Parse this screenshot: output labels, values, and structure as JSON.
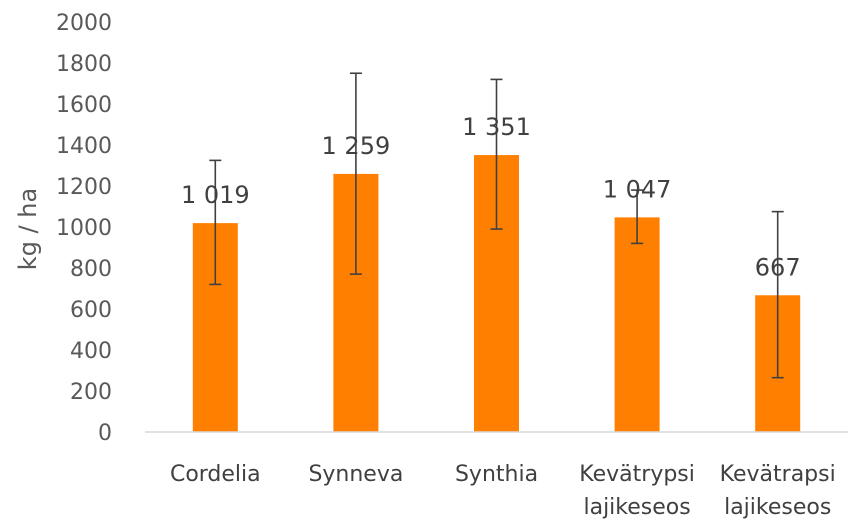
{
  "chart_data": {
    "type": "bar",
    "categories": [
      [
        "Cordelia"
      ],
      [
        "Synneva"
      ],
      [
        "Synthia"
      ],
      [
        "Kevätrypsi",
        "lajikeseos"
      ],
      [
        "Kevätrapsi",
        "lajikeseos"
      ]
    ],
    "values": [
      1019,
      1259,
      1351,
      1047,
      667
    ],
    "data_labels": [
      "1 019",
      "1 259",
      "1 351",
      "1 047",
      "667"
    ],
    "error_bars": [
      {
        "low": 720,
        "high": 1325
      },
      {
        "low": 770,
        "high": 1750
      },
      {
        "low": 990,
        "high": 1720
      },
      {
        "low": 920,
        "high": 1180
      },
      {
        "low": 265,
        "high": 1075
      }
    ],
    "ylabel": "kg  / ha",
    "ylim": [
      0,
      2000
    ],
    "yticks": [
      0,
      200,
      400,
      600,
      800,
      1000,
      1200,
      1400,
      1600,
      1800,
      2000
    ],
    "grid": false,
    "bar_color": "#FF8000",
    "error_bar_color": "#404040",
    "axis_color": "#D9D9D9"
  }
}
